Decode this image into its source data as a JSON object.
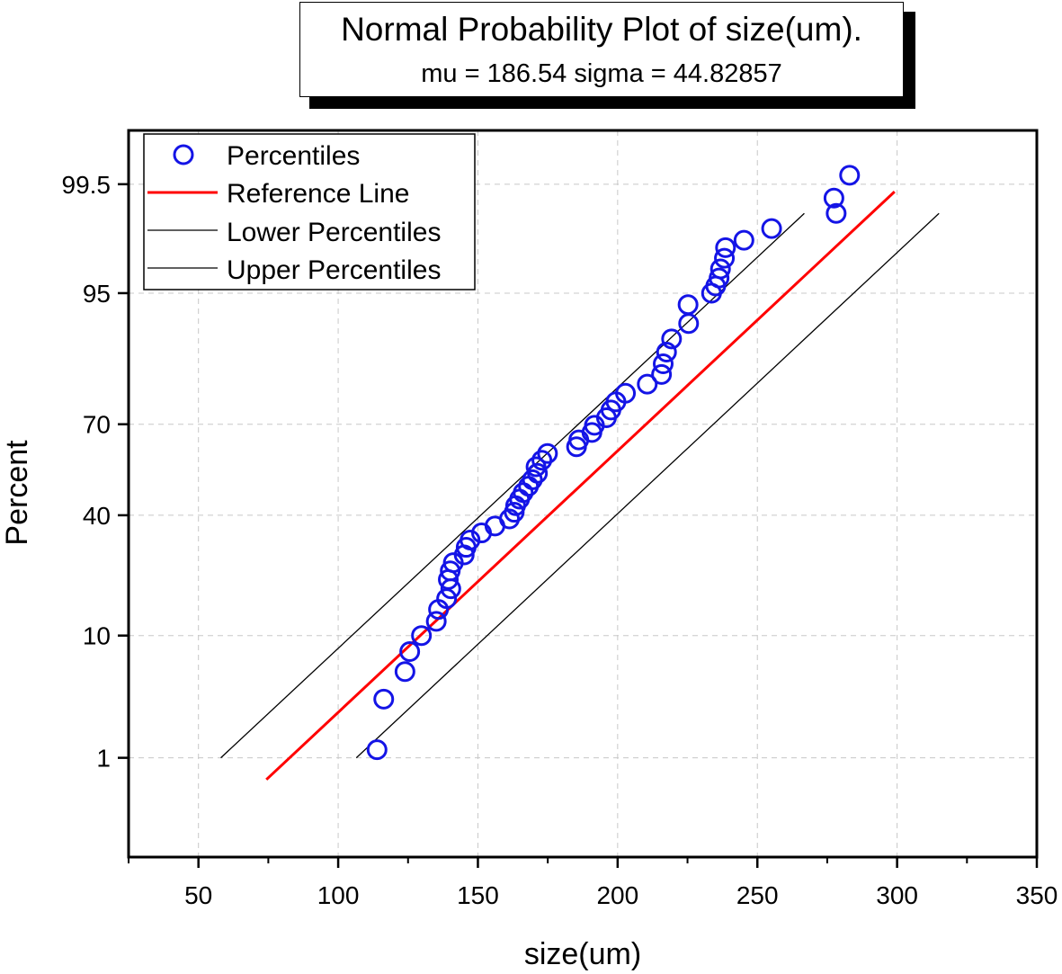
{
  "chart_data": {
    "type": "scatter",
    "title": "Normal Probability Plot of size(um).",
    "subtitle": "mu = 186.54  sigma = 44.82857",
    "mu": 186.54,
    "sigma": 44.82857,
    "xlabel": "size(um)",
    "ylabel": "Percent",
    "xlim": [
      25,
      350
    ],
    "x_ticks": [
      50,
      100,
      150,
      200,
      250,
      300,
      350
    ],
    "y_ticks": [
      1,
      10,
      40,
      70,
      95,
      99.5
    ],
    "y_tick_labels": [
      "1",
      "10",
      "40",
      "70",
      "95",
      "99.5"
    ],
    "y_scale": "normal-probability",
    "ylim_percent": [
      0.075,
      99.88
    ],
    "grid": true,
    "legend_position": "top-left",
    "legend": [
      {
        "key": "percentiles",
        "label": "Percentiles",
        "color": "#1414e6",
        "marker": "open-circle"
      },
      {
        "key": "reference",
        "label": "Reference Line",
        "color": "#ff0000",
        "marker": "line"
      },
      {
        "key": "lower",
        "label": "Lower Percentiles",
        "color": "#000000",
        "marker": "line"
      },
      {
        "key": "upper",
        "label": "Upper Percentiles",
        "color": "#000000",
        "marker": "line"
      }
    ],
    "series": [
      {
        "name": "Percentiles",
        "x": [
          113.9,
          116.3,
          123.9,
          125.6,
          129.8,
          135.1,
          135.9,
          138.8,
          140.3,
          139.4,
          140.1,
          141.2,
          145.1,
          145.8,
          147.2,
          151.3,
          156.1,
          161.3,
          163.0,
          163.5,
          164.9,
          166.2,
          168.1,
          169.5,
          171.3,
          170.8,
          172.9,
          174.9,
          185.3,
          186.1,
          190.8,
          191.7,
          196.0,
          197.6,
          199.4,
          202.8,
          210.6,
          215.7,
          216.3,
          217.5,
          219.3,
          225.4,
          225.2,
          233.6,
          235.1,
          236.3,
          236.8,
          238.2,
          238.6,
          245.2,
          255.1,
          278.2,
          277.4,
          283.0
        ],
        "percent": [
          1.2,
          3.4,
          5.6,
          7.8,
          10.0,
          12.3,
          14.5,
          16.7,
          18.9,
          21.1,
          23.3,
          25.5,
          27.7,
          29.9,
          32.1,
          34.3,
          36.5,
          38.8,
          41.0,
          43.2,
          45.4,
          47.6,
          49.8,
          52.0,
          54.2,
          56.4,
          58.6,
          60.8,
          63.0,
          65.2,
          67.5,
          69.7,
          71.9,
          74.1,
          76.3,
          78.5,
          80.7,
          82.9,
          85.1,
          87.3,
          89.5,
          91.7,
          93.9,
          95.0,
          95.6,
          96.2,
          96.8,
          97.4,
          97.9,
          98.2,
          98.6,
          99.0,
          99.3,
          99.6
        ]
      },
      {
        "name": "Reference Line",
        "x": [
          74.3,
          299.1
        ],
        "percent": [
          0.6,
          99.4
        ]
      },
      {
        "name": "Lower Percentiles",
        "x": [
          58.0,
          266.8
        ],
        "percent": [
          1.0,
          99.0
        ]
      },
      {
        "name": "Upper Percentiles",
        "x": [
          106.5,
          315.0
        ],
        "percent": [
          1.0,
          99.0
        ]
      }
    ]
  },
  "colors": {
    "marker": "#1414e6",
    "reference": "#ff0000",
    "bounds": "#000000",
    "grid": "#c8c8c8"
  }
}
